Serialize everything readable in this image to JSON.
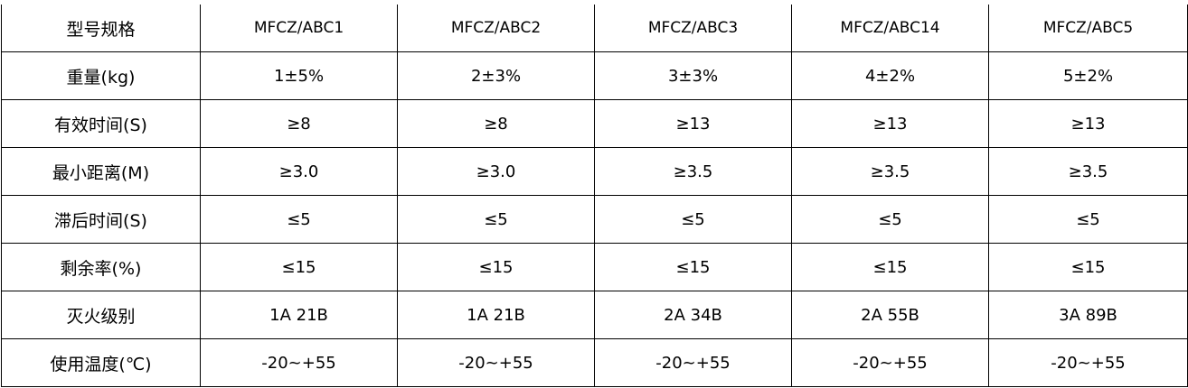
{
  "table": {
    "rows": [
      {
        "label": "型号规格",
        "cells": [
          "MFCZ/ABC1",
          "MFCZ/ABC2",
          "MFCZ/ABC3",
          "MFCZ/ABC14",
          "MFCZ/ABC5"
        ]
      },
      {
        "label": "重量(kg)",
        "cells": [
          "1±5%",
          "2±3%",
          "3±3%",
          "4±2%",
          "5±2%"
        ]
      },
      {
        "label": "有效时间(S)",
        "cells": [
          "≥8",
          "≥8",
          "≥13",
          "≥13",
          "≥13"
        ]
      },
      {
        "label": "最小距离(M)",
        "cells": [
          "≥3.0",
          "≥3.0",
          "≥3.5",
          "≥3.5",
          "≥3.5"
        ]
      },
      {
        "label": "滞后时间(S)",
        "cells": [
          "≤5",
          "≤5",
          "≤5",
          "≤5",
          "≤5"
        ]
      },
      {
        "label": "剩余率(%)",
        "cells": [
          "≤15",
          "≤15",
          "≤15",
          "≤15",
          "≤15"
        ]
      },
      {
        "label": "灭火级别",
        "cells": [
          "1A 21B",
          "1A 21B",
          "2A 34B",
          "2A 55B",
          "3A 89B"
        ]
      },
      {
        "label": "使用温度(℃)",
        "cells": [
          "-20~+55",
          "-20~+55",
          "-20~+55",
          "-20~+55",
          "-20~+55"
        ]
      }
    ]
  }
}
